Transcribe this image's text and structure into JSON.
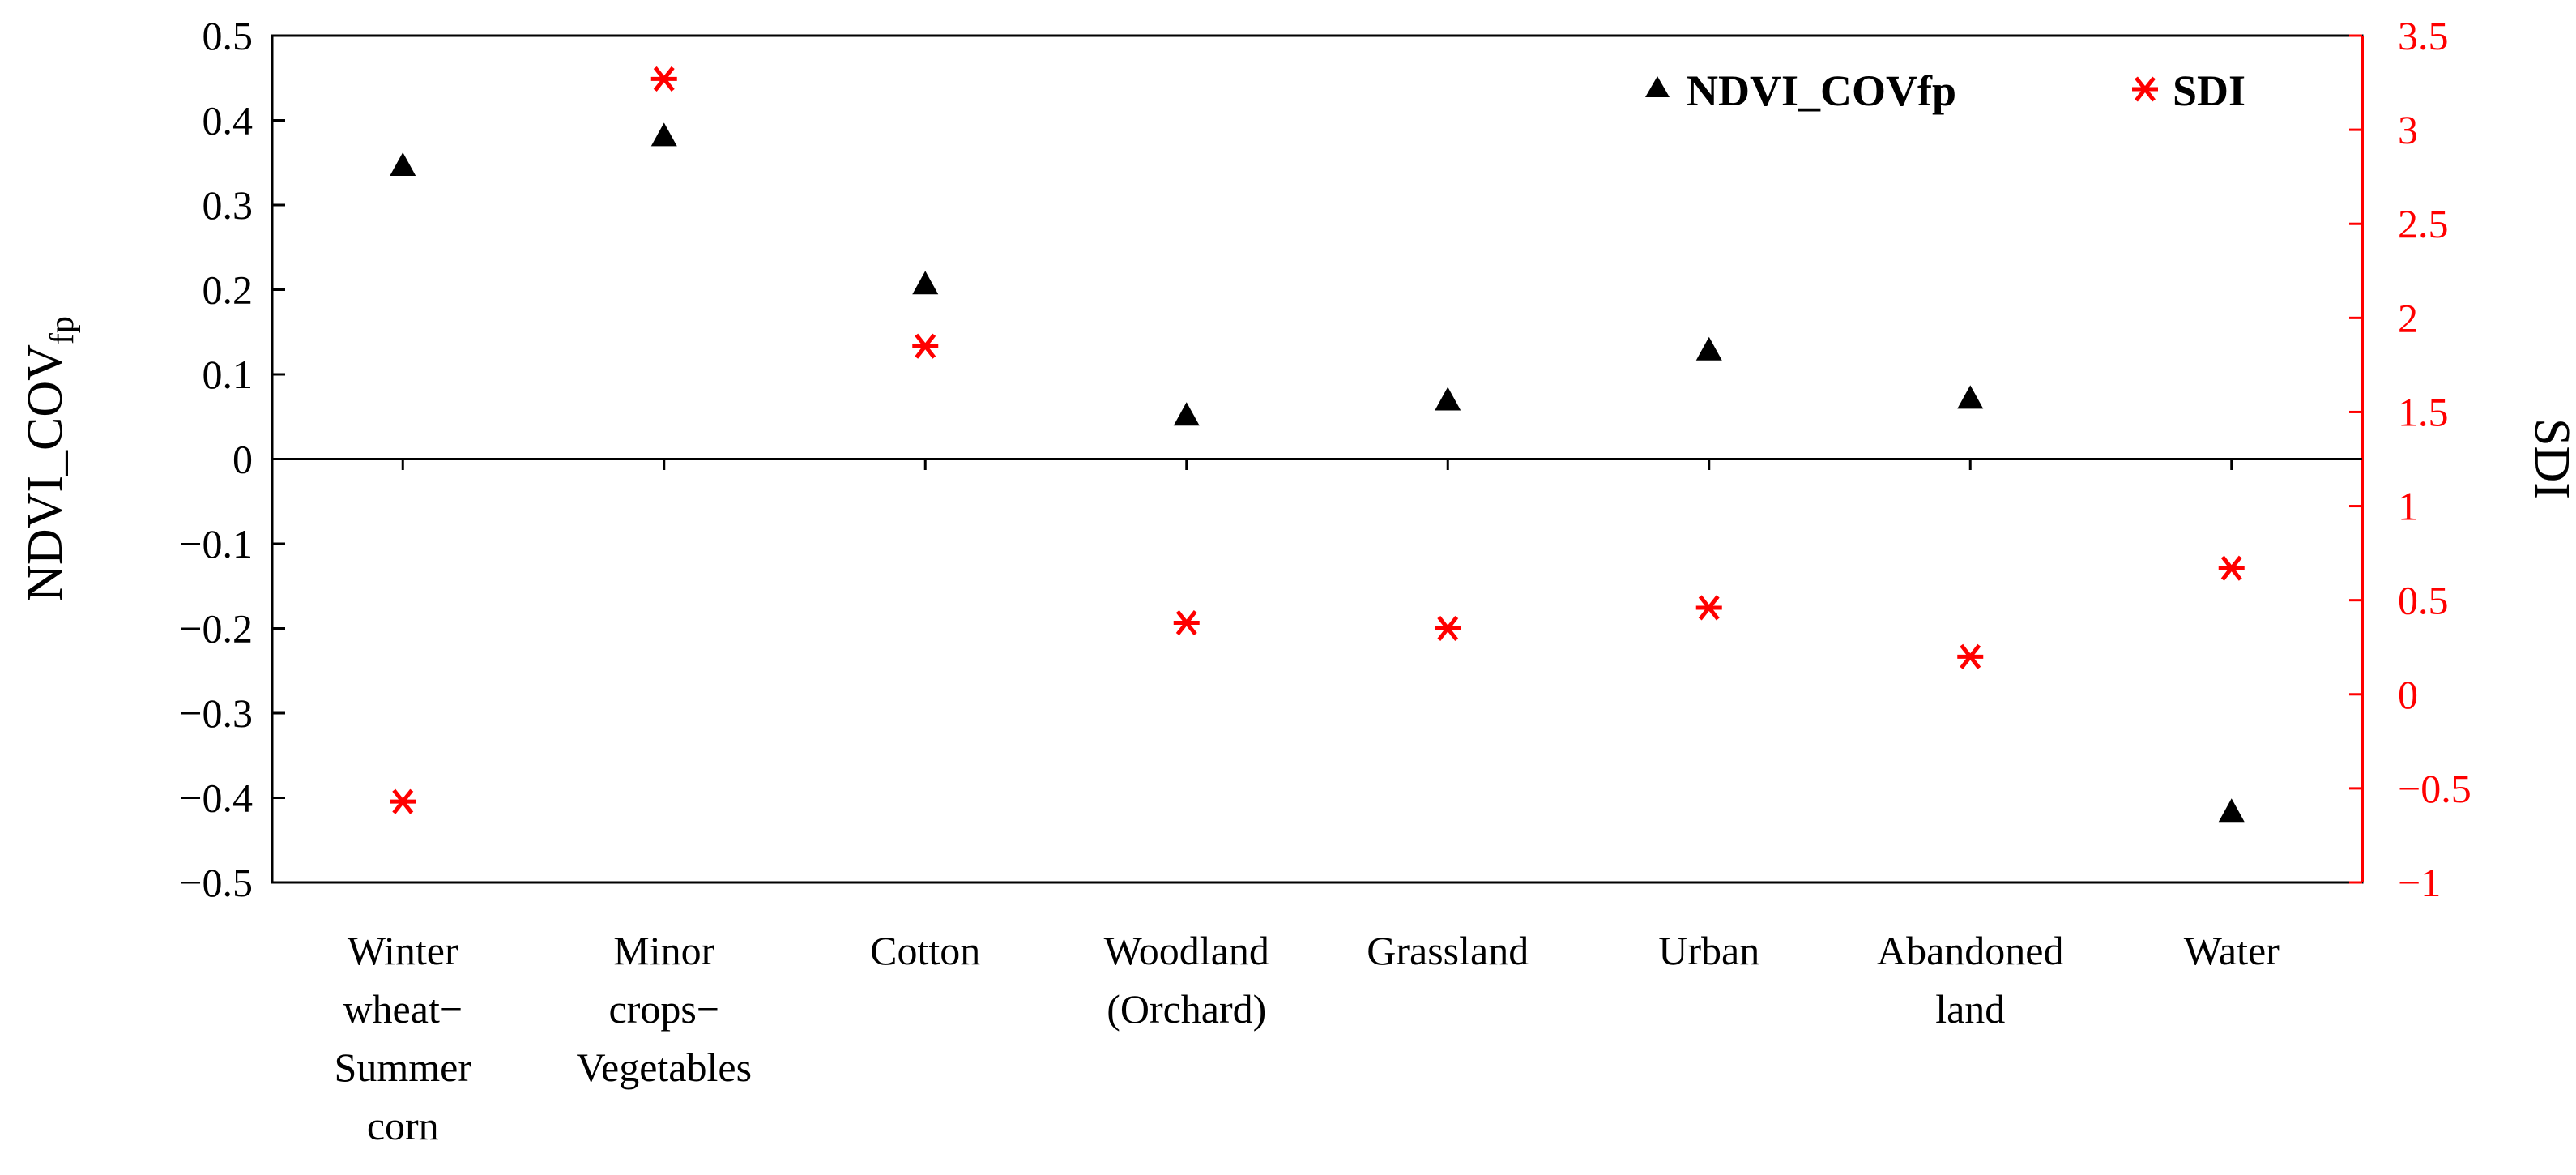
{
  "chart_data": {
    "type": "scatter",
    "categories": [
      [
        "Winter",
        "wheat−",
        "Summer",
        "corn"
      ],
      [
        "Minor",
        "crops−",
        "Vegetables"
      ],
      [
        "Cotton"
      ],
      [
        "Woodland",
        "(Orchard)"
      ],
      [
        "Grassland"
      ],
      [
        "Urban"
      ],
      [
        "Abandoned",
        "land"
      ],
      [
        "Water"
      ]
    ],
    "series": [
      {
        "name": "NDVI_COVfp",
        "axis": "left",
        "marker": "triangle",
        "color": "#000000",
        "values": [
          0.345,
          0.38,
          0.205,
          0.05,
          0.068,
          0.127,
          0.07,
          -0.418
        ]
      },
      {
        "name": "SDI",
        "axis": "right",
        "marker": "asterisk",
        "color": "#ff0000",
        "values": [
          -0.57,
          3.27,
          1.85,
          0.38,
          0.35,
          0.46,
          0.2,
          0.67
        ]
      }
    ],
    "y_left": {
      "label": "NDVI_COV",
      "label_sub": "fp",
      "ylim": [
        -0.5,
        0.5
      ],
      "ticks": [
        "0.5",
        "0.4",
        "0.3",
        "0.2",
        "0.1",
        "0",
        "−0.1",
        "−0.2",
        "−0.3",
        "−0.4",
        "−0.5"
      ]
    },
    "y_right": {
      "label": "SDI",
      "ylim": [
        -1,
        3.5
      ],
      "ticks": [
        "3.5",
        "3",
        "2.5",
        "2",
        "1.5",
        "1",
        "0.5",
        "0",
        "−0.5",
        "−1"
      ],
      "color": "#ff0000"
    },
    "legend": {
      "position": "top-right"
    },
    "grid": false
  }
}
